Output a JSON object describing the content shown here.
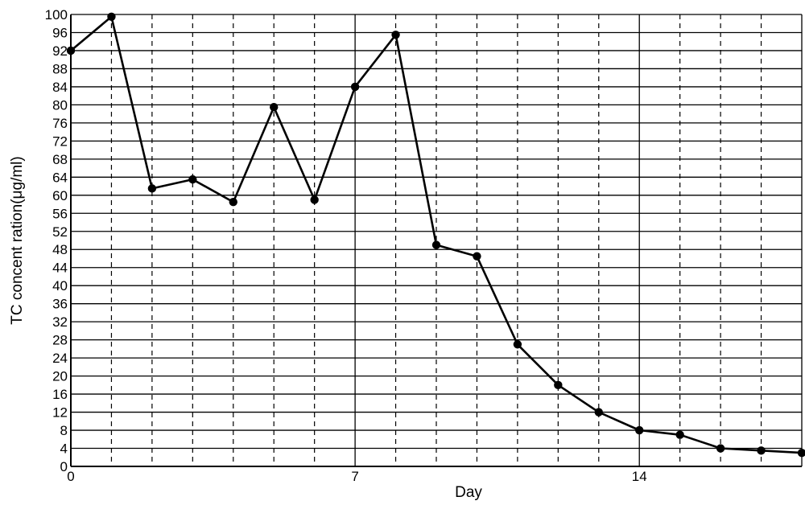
{
  "chart_data": {
    "type": "line",
    "xlabel": "Day",
    "ylabel": "TC concent ration(μg/ml)",
    "xlim": [
      0,
      18
    ],
    "ylim": [
      0,
      100
    ],
    "x_ticks": [
      0,
      7,
      14
    ],
    "y_ticks": [
      0,
      4,
      8,
      12,
      16,
      20,
      24,
      28,
      32,
      36,
      40,
      44,
      48,
      52,
      56,
      60,
      64,
      68,
      72,
      76,
      80,
      84,
      88,
      92,
      96,
      100
    ],
    "grid": {
      "horizontal_step": 4,
      "vertical_step": 1,
      "major_vertical": [
        0,
        7,
        14,
        18
      ],
      "minor_vertical_style": "dashed"
    },
    "series": [
      {
        "color": "#000000",
        "marker": "circle",
        "x": [
          0,
          1,
          2,
          3,
          4,
          5,
          6,
          7,
          8,
          9,
          10,
          11,
          12,
          13,
          14,
          15,
          16,
          17,
          18
        ],
        "y": [
          92,
          99.5,
          61.5,
          63.5,
          58.5,
          79.5,
          59,
          84,
          95.5,
          49,
          46.5,
          27,
          18,
          12,
          8,
          7,
          4,
          3.5,
          3
        ]
      }
    ]
  }
}
